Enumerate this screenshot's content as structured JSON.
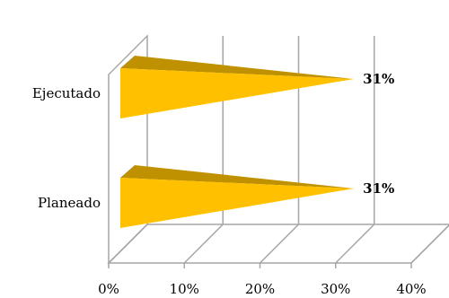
{
  "chart_data": {
    "type": "bar",
    "orientation": "horizontal",
    "style": "3d-cone",
    "categories": [
      "Ejecutado",
      "Planeado"
    ],
    "values": [
      0.31,
      0.31
    ],
    "data_labels": [
      "31%",
      "31%"
    ],
    "xlim": [
      0,
      0.4
    ],
    "x_ticks": [
      0,
      0.1,
      0.2,
      0.3,
      0.4
    ],
    "x_tick_labels": [
      "0%",
      "10%",
      "20%",
      "30%",
      "40%"
    ],
    "grid": "vertical",
    "legend": "none",
    "title": "",
    "xlabel": "",
    "ylabel": "",
    "colors": {
      "bar_front": "#FFC000",
      "bar_top": "#BF9000",
      "grid": "#A6A6A6",
      "wall": "#FFFFFF"
    }
  }
}
